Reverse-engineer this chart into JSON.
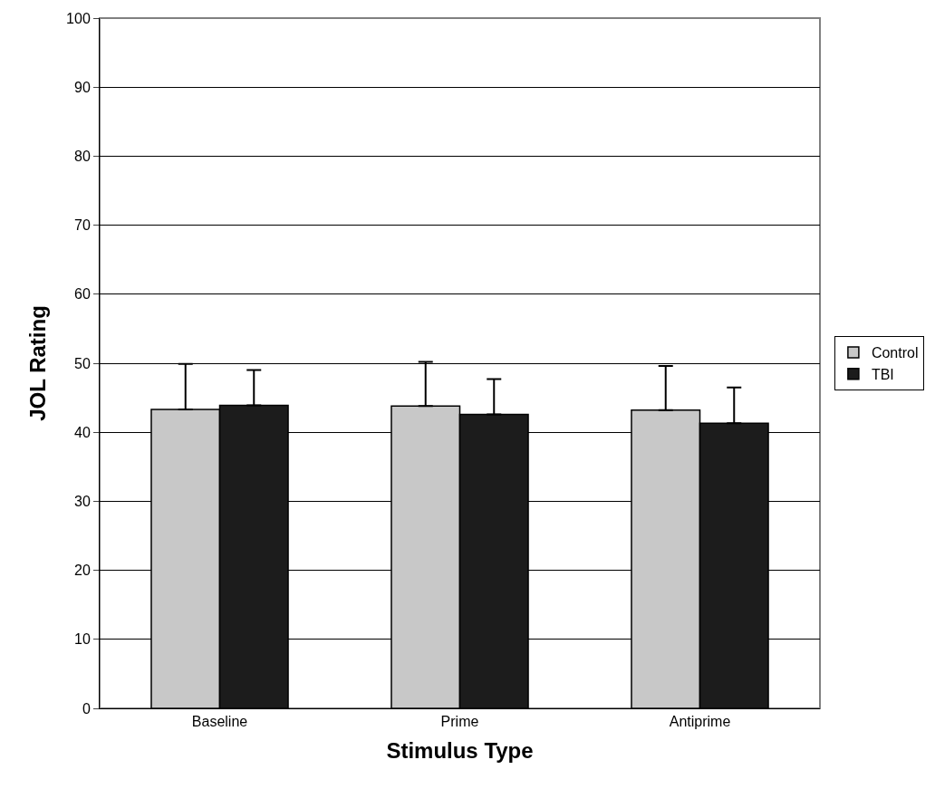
{
  "chart_data": {
    "type": "bar",
    "xlabel": "Stimulus Type",
    "ylabel": "JOL Rating",
    "categories": [
      "Baseline",
      "Prime",
      "Antiprime"
    ],
    "series": [
      {
        "name": "Control",
        "color": "#c8c8c8",
        "values": [
          43.3,
          43.8,
          43.2
        ],
        "errors": [
          [
            43.3,
            49.9
          ],
          [
            43.8,
            50.2
          ],
          [
            43.2,
            49.6
          ]
        ]
      },
      {
        "name": "TBI",
        "color": "#1c1c1c",
        "values": [
          43.9,
          42.6,
          41.3
        ],
        "errors": [
          [
            43.9,
            49.0
          ],
          [
            42.6,
            47.7
          ],
          [
            41.3,
            46.5
          ]
        ]
      }
    ],
    "ylim": [
      0,
      100
    ],
    "yticks": [
      0,
      10,
      20,
      30,
      40,
      50,
      60,
      70,
      80,
      90,
      100
    ],
    "grid": "y",
    "legend": "right"
  }
}
